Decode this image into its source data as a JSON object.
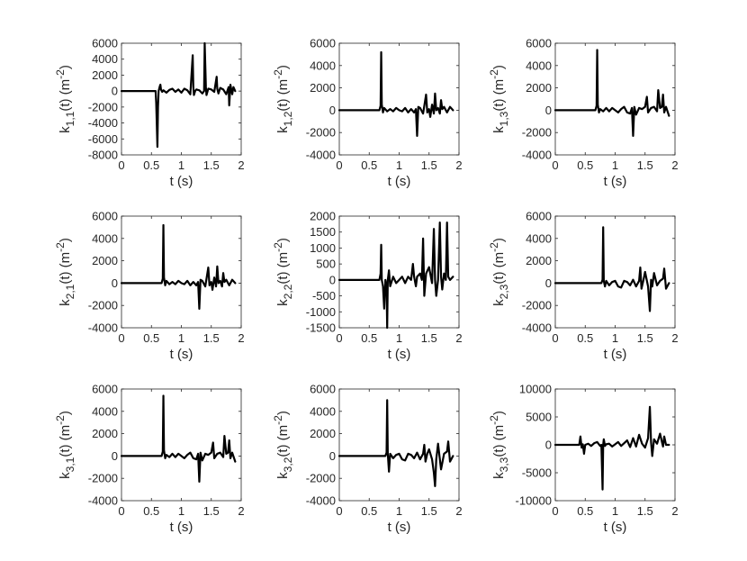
{
  "chart_data": [
    {
      "type": "line",
      "xlabel": "t (s)",
      "ylabel": {
        "main": "k",
        "sub": "1,1",
        "rest": "(t) (m",
        "sup": "-2",
        "close": ")"
      },
      "xlim": [
        0,
        2
      ],
      "ylim": [
        -8000,
        6000
      ],
      "xticks": [
        0,
        0.5,
        1,
        1.5,
        2
      ],
      "yticks": [
        -8000,
        -6000,
        -4000,
        -2000,
        0,
        2000,
        4000,
        6000
      ],
      "series": [
        {
          "color": "#000000",
          "x": [
            0,
            0.57,
            0.58,
            0.6,
            0.61,
            0.62,
            0.64,
            0.65,
            0.66,
            0.68,
            0.7,
            0.75,
            0.8,
            0.85,
            0.9,
            0.95,
            1.0,
            1.05,
            1.1,
            1.15,
            1.19,
            1.2,
            1.21,
            1.23,
            1.25,
            1.3,
            1.35,
            1.38,
            1.39,
            1.41,
            1.42,
            1.45,
            1.5,
            1.55,
            1.59,
            1.6,
            1.62,
            1.65,
            1.7,
            1.75,
            1.79,
            1.8,
            1.82,
            1.85,
            1.87,
            1.9
          ],
          "y": [
            0,
            0,
            -1500,
            -7000,
            -2000,
            0,
            600,
            800,
            200,
            -100,
            100,
            -200,
            150,
            300,
            -100,
            200,
            -200,
            300,
            100,
            -400,
            4500,
            500,
            -500,
            0,
            200,
            100,
            -300,
            0,
            6000,
            500,
            -500,
            300,
            200,
            -100,
            1800,
            300,
            -300,
            400,
            200,
            -400,
            500,
            -1800,
            800,
            -400,
            500,
            0
          ]
        }
      ]
    },
    {
      "type": "line",
      "xlabel": "t (s)",
      "ylabel": {
        "main": "k",
        "sub": "1,2",
        "rest": "(t) (m",
        "sup": "-2",
        "close": ")"
      },
      "xlim": [
        0,
        2
      ],
      "ylim": [
        -4000,
        6000
      ],
      "xticks": [
        0,
        0.5,
        1,
        1.5,
        2
      ],
      "yticks": [
        -4000,
        -2000,
        0,
        2000,
        4000,
        6000
      ],
      "series": [
        {
          "color": "#000000",
          "x": [
            0,
            0.67,
            0.69,
            0.7,
            0.71,
            0.73,
            0.75,
            0.8,
            0.85,
            0.9,
            0.95,
            1.0,
            1.05,
            1.1,
            1.15,
            1.2,
            1.25,
            1.28,
            1.3,
            1.32,
            1.35,
            1.4,
            1.45,
            1.47,
            1.5,
            1.52,
            1.55,
            1.58,
            1.6,
            1.62,
            1.65,
            1.68,
            1.7,
            1.72,
            1.75,
            1.8,
            1.85,
            1.9
          ],
          "y": [
            0,
            0,
            400,
            5200,
            500,
            -200,
            200,
            -100,
            100,
            -100,
            200,
            0,
            -100,
            200,
            -200,
            100,
            -200,
            100,
            -2300,
            300,
            200,
            -300,
            1400,
            -200,
            100,
            -600,
            500,
            -300,
            1500,
            0,
            200,
            -300,
            900,
            100,
            300,
            -200,
            300,
            0
          ]
        }
      ]
    },
    {
      "type": "line",
      "xlabel": "t (s)",
      "ylabel": {
        "main": "k",
        "sub": "1,3",
        "rest": "(t) (m",
        "sup": "-2",
        "close": ")"
      },
      "xlim": [
        0,
        2
      ],
      "ylim": [
        -4000,
        6000
      ],
      "xticks": [
        0,
        0.5,
        1,
        1.5,
        2
      ],
      "yticks": [
        -4000,
        -2000,
        0,
        2000,
        4000,
        6000
      ],
      "series": [
        {
          "color": "#000000",
          "x": [
            0,
            0.67,
            0.69,
            0.7,
            0.71,
            0.73,
            0.75,
            0.8,
            0.85,
            0.9,
            0.95,
            1.0,
            1.05,
            1.1,
            1.15,
            1.2,
            1.25,
            1.28,
            1.3,
            1.32,
            1.35,
            1.4,
            1.45,
            1.5,
            1.53,
            1.55,
            1.6,
            1.65,
            1.7,
            1.72,
            1.75,
            1.78,
            1.8,
            1.82,
            1.85,
            1.9
          ],
          "y": [
            0,
            0,
            400,
            5400,
            500,
            -200,
            100,
            -100,
            200,
            -100,
            200,
            0,
            -200,
            100,
            300,
            -200,
            -300,
            200,
            -2300,
            300,
            -400,
            200,
            100,
            300,
            1200,
            -200,
            200,
            300,
            -100,
            1800,
            200,
            300,
            1400,
            -200,
            300,
            -500
          ]
        }
      ]
    },
    {
      "type": "line",
      "xlabel": "t (s)",
      "ylabel": {
        "main": "k",
        "sub": "2,1",
        "rest": "(t) (m",
        "sup": "-2",
        "close": ")"
      },
      "xlim": [
        0,
        2
      ],
      "ylim": [
        -4000,
        6000
      ],
      "xticks": [
        0,
        0.5,
        1,
        1.5,
        2
      ],
      "yticks": [
        -4000,
        -2000,
        0,
        2000,
        4000,
        6000
      ],
      "series": [
        {
          "color": "#000000",
          "x": [
            0,
            0.67,
            0.69,
            0.7,
            0.71,
            0.73,
            0.75,
            0.8,
            0.85,
            0.9,
            0.95,
            1.0,
            1.05,
            1.1,
            1.15,
            1.2,
            1.25,
            1.28,
            1.3,
            1.32,
            1.35,
            1.4,
            1.45,
            1.47,
            1.5,
            1.52,
            1.55,
            1.58,
            1.6,
            1.62,
            1.65,
            1.68,
            1.7,
            1.72,
            1.75,
            1.8,
            1.85,
            1.9
          ],
          "y": [
            0,
            0,
            400,
            5200,
            500,
            -200,
            200,
            -100,
            100,
            -100,
            200,
            0,
            -100,
            200,
            -200,
            100,
            -200,
            100,
            -2300,
            300,
            200,
            -300,
            1400,
            -200,
            100,
            -600,
            500,
            -300,
            1500,
            0,
            200,
            -300,
            900,
            100,
            300,
            -200,
            300,
            0
          ]
        }
      ]
    },
    {
      "type": "line",
      "xlabel": "t (s)",
      "ylabel": {
        "main": "k",
        "sub": "2,2",
        "rest": "(t) (m",
        "sup": "-2",
        "close": ")"
      },
      "xlim": [
        0,
        2
      ],
      "ylim": [
        -1500,
        2000
      ],
      "xticks": [
        0,
        0.5,
        1,
        1.5,
        2
      ],
      "yticks": [
        -1500,
        -1000,
        -500,
        0,
        500,
        1000,
        1500,
        2000
      ],
      "series": [
        {
          "color": "#000000",
          "x": [
            0,
            0.67,
            0.69,
            0.7,
            0.71,
            0.73,
            0.75,
            0.77,
            0.79,
            0.8,
            0.81,
            0.83,
            0.85,
            0.9,
            0.95,
            1.0,
            1.05,
            1.1,
            1.15,
            1.2,
            1.23,
            1.25,
            1.28,
            1.3,
            1.35,
            1.38,
            1.4,
            1.42,
            1.45,
            1.5,
            1.55,
            1.58,
            1.6,
            1.62,
            1.65,
            1.68,
            1.7,
            1.72,
            1.75,
            1.78,
            1.8,
            1.82,
            1.85,
            1.9
          ],
          "y": [
            0,
            0,
            200,
            1100,
            0,
            -200,
            -900,
            0,
            -200,
            -1500,
            0,
            300,
            -200,
            100,
            -100,
            0,
            100,
            -100,
            100,
            0,
            500,
            100,
            -200,
            100,
            200,
            0,
            1300,
            -500,
            200,
            400,
            -100,
            1600,
            0,
            -500,
            0,
            1800,
            100,
            -300,
            200,
            0,
            1800,
            100,
            0,
            100
          ]
        }
      ]
    },
    {
      "type": "line",
      "xlabel": "t (s)",
      "ylabel": {
        "main": "k",
        "sub": "2,3",
        "rest": "(t) (m",
        "sup": "-2",
        "close": ")"
      },
      "xlim": [
        0,
        2
      ],
      "ylim": [
        -4000,
        6000
      ],
      "xticks": [
        0,
        0.5,
        1,
        1.5,
        2
      ],
      "yticks": [
        -4000,
        -2000,
        0,
        2000,
        4000,
        6000
      ],
      "series": [
        {
          "color": "#000000",
          "x": [
            0,
            0.77,
            0.79,
            0.8,
            0.81,
            0.83,
            0.85,
            0.9,
            0.95,
            1.0,
            1.05,
            1.1,
            1.15,
            1.2,
            1.25,
            1.3,
            1.35,
            1.4,
            1.42,
            1.44,
            1.47,
            1.5,
            1.55,
            1.58,
            1.6,
            1.62,
            1.65,
            1.7,
            1.75,
            1.8,
            1.82,
            1.85,
            1.9
          ],
          "y": [
            0,
            0,
            300,
            5000,
            200,
            -300,
            200,
            -200,
            100,
            200,
            -300,
            -400,
            200,
            100,
            -200,
            300,
            -300,
            200,
            1400,
            -500,
            200,
            1000,
            -300,
            -2500,
            300,
            -300,
            900,
            -200,
            200,
            400,
            1300,
            -500,
            0
          ]
        }
      ]
    },
    {
      "type": "line",
      "xlabel": "t (s)",
      "ylabel": {
        "main": "k",
        "sub": "3,1",
        "rest": "(t) (m",
        "sup": "-2",
        "close": ")"
      },
      "xlim": [
        0,
        2
      ],
      "ylim": [
        -4000,
        6000
      ],
      "xticks": [
        0,
        0.5,
        1,
        1.5,
        2
      ],
      "yticks": [
        -4000,
        -2000,
        0,
        2000,
        4000,
        6000
      ],
      "series": [
        {
          "color": "#000000",
          "x": [
            0,
            0.67,
            0.69,
            0.7,
            0.71,
            0.73,
            0.75,
            0.8,
            0.85,
            0.9,
            0.95,
            1.0,
            1.05,
            1.1,
            1.15,
            1.2,
            1.25,
            1.28,
            1.3,
            1.32,
            1.35,
            1.4,
            1.45,
            1.5,
            1.53,
            1.55,
            1.6,
            1.65,
            1.7,
            1.72,
            1.75,
            1.78,
            1.8,
            1.82,
            1.85,
            1.9
          ],
          "y": [
            0,
            0,
            400,
            5400,
            500,
            -200,
            100,
            -100,
            200,
            -100,
            200,
            0,
            -200,
            100,
            300,
            -200,
            -300,
            200,
            -2300,
            300,
            -400,
            200,
            100,
            300,
            1200,
            -200,
            200,
            300,
            -100,
            1800,
            200,
            300,
            1400,
            -200,
            300,
            -500
          ]
        }
      ]
    },
    {
      "type": "line",
      "xlabel": "t (s)",
      "ylabel": {
        "main": "k",
        "sub": "3,2",
        "rest": "(t) (m",
        "sup": "-2",
        "close": ")"
      },
      "xlim": [
        0,
        2
      ],
      "ylim": [
        -4000,
        6000
      ],
      "xticks": [
        0,
        0.5,
        1,
        1.5,
        2
      ],
      "yticks": [
        -4000,
        -2000,
        0,
        2000,
        4000,
        6000
      ],
      "series": [
        {
          "color": "#000000",
          "x": [
            0,
            0.77,
            0.79,
            0.8,
            0.81,
            0.83,
            0.85,
            0.9,
            0.95,
            1.0,
            1.05,
            1.1,
            1.15,
            1.2,
            1.25,
            1.3,
            1.35,
            1.4,
            1.42,
            1.44,
            1.47,
            1.5,
            1.55,
            1.58,
            1.6,
            1.62,
            1.65,
            1.7,
            1.75,
            1.8,
            1.82,
            1.85,
            1.9
          ],
          "y": [
            0,
            0,
            300,
            5000,
            200,
            -1400,
            200,
            -200,
            100,
            200,
            -300,
            -400,
            200,
            100,
            -200,
            300,
            -300,
            200,
            1000,
            -500,
            200,
            600,
            -300,
            -1500,
            -2700,
            -300,
            1100,
            -1200,
            200,
            400,
            1300,
            -500,
            0
          ]
        }
      ]
    },
    {
      "type": "line",
      "xlabel": "t (s)",
      "ylabel": {
        "main": "k",
        "sub": "3,3",
        "rest": "(t) (m",
        "sup": "-2",
        "close": ")"
      },
      "xlim": [
        0,
        2
      ],
      "ylim": [
        -10000,
        10000
      ],
      "xticks": [
        0,
        0.5,
        1,
        1.5,
        2
      ],
      "yticks": [
        -10000,
        -5000,
        0,
        5000,
        10000
      ],
      "series": [
        {
          "color": "#000000",
          "x": [
            0,
            0.4,
            0.42,
            0.44,
            0.46,
            0.48,
            0.5,
            0.55,
            0.6,
            0.65,
            0.7,
            0.75,
            0.77,
            0.79,
            0.8,
            0.81,
            0.83,
            0.85,
            0.9,
            0.95,
            1.0,
            1.05,
            1.1,
            1.15,
            1.2,
            1.25,
            1.3,
            1.35,
            1.4,
            1.45,
            1.5,
            1.55,
            1.58,
            1.6,
            1.62,
            1.65,
            1.7,
            1.75,
            1.8,
            1.82,
            1.85,
            1.9
          ],
          "y": [
            0,
            0,
            1500,
            -500,
            100,
            -1600,
            0,
            200,
            -200,
            300,
            500,
            -200,
            0,
            -8000,
            0,
            1000,
            -200,
            100,
            200,
            -300,
            100,
            500,
            -200,
            300,
            800,
            -400,
            1200,
            -300,
            1800,
            200,
            -500,
            1200,
            6800,
            500,
            -2000,
            1000,
            200,
            2000,
            -300,
            1500,
            0,
            0
          ]
        }
      ]
    }
  ]
}
